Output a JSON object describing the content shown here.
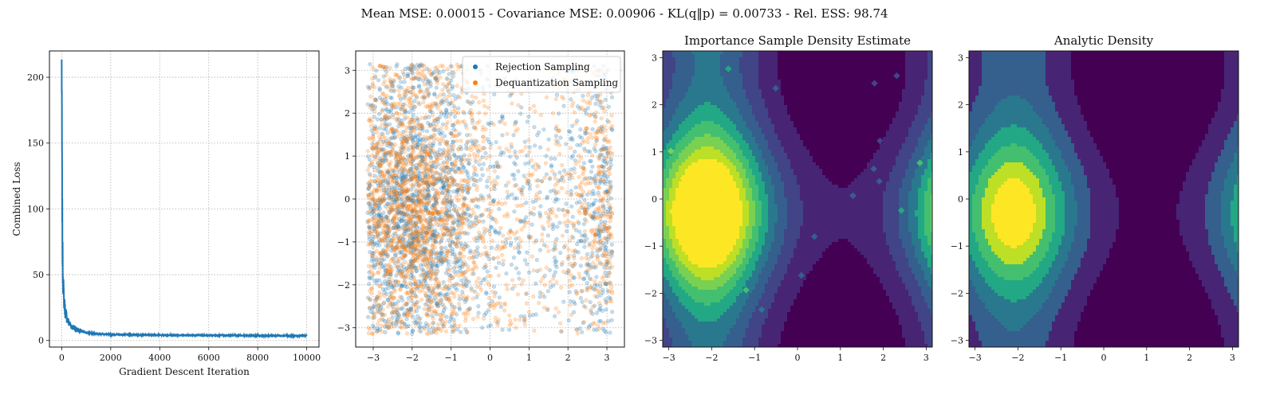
{
  "figure": {
    "suptitle": "Mean MSE: 0.00015 - Covariance MSE: 0.00906 - KL(q‖p) = 0.00733 - Rel. ESS: 98.74"
  },
  "colors": {
    "blue": "#1f77b4",
    "orange": "#ff7f0e",
    "grid": "#b0b0b0",
    "viridis": [
      "#440154",
      "#482475",
      "#414487",
      "#355f8d",
      "#2a788e",
      "#21918c",
      "#22a884",
      "#44bf70",
      "#7ad151",
      "#bddf26",
      "#fde725"
    ]
  },
  "chart_data": [
    {
      "type": "line",
      "title": "",
      "xlabel": "Gradient Descent Iteration",
      "ylabel": "Combined Loss",
      "xlim": [
        -500,
        10500
      ],
      "ylim": [
        -5,
        220
      ],
      "xticks": [
        0,
        2000,
        4000,
        6000,
        8000,
        10000
      ],
      "yticks": [
        0,
        50,
        100,
        150,
        200
      ],
      "grid": true,
      "series": [
        {
          "x": [
            0,
            5,
            10,
            15,
            20,
            30,
            40,
            50,
            60,
            80,
            100,
            120,
            150,
            200,
            250,
            300,
            400,
            500,
            600,
            800,
            1000,
            1500,
            2000,
            3000,
            4000,
            5000,
            6000,
            7000,
            8000,
            9000,
            10000
          ],
          "y": [
            210,
            185,
            160,
            130,
            105,
            75,
            60,
            52,
            45,
            35,
            30,
            26,
            22,
            18,
            15,
            13,
            11,
            9.5,
            8.5,
            7,
            6,
            5,
            4.6,
            4.3,
            4.1,
            4.0,
            3.9,
            3.8,
            3.7,
            3.6,
            3.6
          ]
        }
      ]
    },
    {
      "type": "scatter",
      "title": "",
      "xlim": [
        -3.45,
        3.45
      ],
      "ylim": [
        -3.45,
        3.45
      ],
      "xticks": [
        -3,
        -2,
        -1,
        0,
        1,
        2,
        3
      ],
      "yticks": [
        -3,
        -2,
        -1,
        0,
        1,
        2,
        3
      ],
      "grid": true,
      "legend_placement": "top-right",
      "sample_range": [
        -3.14159,
        3.14159
      ],
      "series": [
        {
          "name": "Rejection Sampling",
          "mode_x": -2.1,
          "mode_y": -0.3,
          "density": "exp(cos(x+2.1)+0.5cos(y+0.3))"
        },
        {
          "name": "Dequantization Sampling",
          "mode_x": -2.1,
          "mode_y": -0.3,
          "density": "exp(cos(x+2.1)+0.5cos(y+0.3))"
        }
      ]
    },
    {
      "type": "heatmap",
      "title": "Importance Sample Density Estimate",
      "xlim": [
        -3.14159,
        3.14159
      ],
      "ylim": [
        -3.14159,
        3.14159
      ],
      "xticks": [
        -3,
        -2,
        -1,
        0,
        1,
        2,
        3
      ],
      "yticks": [
        -3,
        -2,
        -1,
        0,
        1,
        2,
        3
      ],
      "mode": [
        -2.1,
        -0.3
      ],
      "levels": 10,
      "noisy": true
    },
    {
      "type": "heatmap",
      "title": "Analytic Density",
      "xlim": [
        -3.14159,
        3.14159
      ],
      "ylim": [
        -3.14159,
        3.14159
      ],
      "xticks": [
        -3,
        -2,
        -1,
        0,
        1,
        2,
        3
      ],
      "yticks": [
        -3,
        -2,
        -1,
        0,
        1,
        2,
        3
      ],
      "mode": [
        -2.1,
        -0.3
      ],
      "levels": 8,
      "noisy": false
    }
  ]
}
